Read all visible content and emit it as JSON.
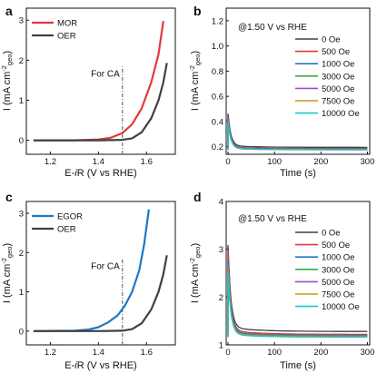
{
  "chart_data": [
    {
      "panel": "a",
      "type": "line",
      "xlabel": "E-iR (V vs RHE)",
      "ylabel": "I (mA cm⁻²geo)",
      "xlim": [
        1.1,
        1.72
      ],
      "ylim": [
        -0.35,
        3.3
      ],
      "xticks": [
        "1.2",
        "1.4",
        "1.6"
      ],
      "yticks": [
        "0",
        "1",
        "2",
        "3"
      ],
      "legend": "top-left",
      "annotation": "For CA",
      "marker_x": 1.5,
      "series": [
        {
          "name": "MOR",
          "color": "#e03a3e",
          "points": [
            [
              1.13,
              0.0
            ],
            [
              1.3,
              0.0
            ],
            [
              1.4,
              0.02
            ],
            [
              1.45,
              0.06
            ],
            [
              1.5,
              0.18
            ],
            [
              1.54,
              0.4
            ],
            [
              1.58,
              0.8
            ],
            [
              1.62,
              1.45
            ],
            [
              1.65,
              2.15
            ],
            [
              1.67,
              2.98
            ]
          ]
        },
        {
          "name": "OER",
          "color": "#404040",
          "points": [
            [
              1.13,
              0.0
            ],
            [
              1.4,
              0.0
            ],
            [
              1.5,
              0.01
            ],
            [
              1.54,
              0.05
            ],
            [
              1.58,
              0.2
            ],
            [
              1.62,
              0.55
            ],
            [
              1.65,
              1.0
            ],
            [
              1.67,
              1.45
            ],
            [
              1.685,
              1.93
            ]
          ]
        }
      ]
    },
    {
      "panel": "b",
      "type": "line",
      "xlabel": "Time (s)",
      "ylabel": "I (mA cm⁻²geo)",
      "xlim": [
        -4,
        305
      ],
      "ylim": [
        0.14,
        1.3
      ],
      "xticks": [
        "0",
        "100",
        "200",
        "300"
      ],
      "yticks": [
        "0.2",
        "0.4",
        "0.6",
        "0.8",
        "1.0",
        "1.2"
      ],
      "annotation": "@1.50 V vs RHE",
      "legend": "right",
      "series": [
        {
          "name": "0 Oe",
          "color": "#404040",
          "start": 0.45,
          "end": 0.195
        },
        {
          "name": "500 Oe",
          "color": "#e03a3e",
          "start": 0.42,
          "end": 0.185
        },
        {
          "name": "1000 Oe",
          "color": "#1f77c4",
          "start": 0.41,
          "end": 0.182
        },
        {
          "name": "3000 Oe",
          "color": "#3aa845",
          "start": 0.4,
          "end": 0.18
        },
        {
          "name": "5000 Oe",
          "color": "#9b4fc8",
          "start": 0.4,
          "end": 0.178
        },
        {
          "name": "7500 Oe",
          "color": "#c89a1a",
          "start": 0.39,
          "end": 0.176
        },
        {
          "name": "10000 Oe",
          "color": "#18c6c6",
          "start": 0.39,
          "end": 0.175
        }
      ]
    },
    {
      "panel": "c",
      "type": "line",
      "xlabel": "E-iR (V vs RHE)",
      "ylabel": "I (mA cm⁻²geo)",
      "xlim": [
        1.1,
        1.72
      ],
      "ylim": [
        -0.35,
        3.3
      ],
      "xticks": [
        "1.2",
        "1.4",
        "1.6"
      ],
      "yticks": [
        "0",
        "1",
        "2",
        "3"
      ],
      "legend": "top-left",
      "annotation": "For CA",
      "marker_x": 1.5,
      "series": [
        {
          "name": "EGOR",
          "color": "#1f77c4",
          "points": [
            [
              1.13,
              0.0
            ],
            [
              1.3,
              0.01
            ],
            [
              1.36,
              0.04
            ],
            [
              1.4,
              0.1
            ],
            [
              1.44,
              0.22
            ],
            [
              1.48,
              0.4
            ],
            [
              1.51,
              0.65
            ],
            [
              1.54,
              1.0
            ],
            [
              1.57,
              1.55
            ],
            [
              1.59,
              2.2
            ],
            [
              1.61,
              3.1
            ]
          ]
        },
        {
          "name": "OER",
          "color": "#404040",
          "points": [
            [
              1.13,
              0.0
            ],
            [
              1.4,
              0.0
            ],
            [
              1.5,
              0.01
            ],
            [
              1.54,
              0.05
            ],
            [
              1.58,
              0.2
            ],
            [
              1.62,
              0.55
            ],
            [
              1.65,
              1.0
            ],
            [
              1.67,
              1.45
            ],
            [
              1.685,
              1.93
            ]
          ]
        }
      ]
    },
    {
      "panel": "d",
      "type": "line",
      "xlabel": "Time (s)",
      "ylabel": "I (mA cm⁻²geo)",
      "xlim": [
        -4,
        305
      ],
      "ylim": [
        1.0,
        4.0
      ],
      "xticks": [
        "0",
        "100",
        "200",
        "300"
      ],
      "yticks": [
        "1",
        "2",
        "3",
        "4"
      ],
      "annotation": "@1.50 V vs RHE",
      "legend": "right",
      "series": [
        {
          "name": "0 Oe",
          "color": "#404040",
          "start": 3.0,
          "end": 1.28
        },
        {
          "name": "500 Oe",
          "color": "#e03a3e",
          "start": 2.9,
          "end": 1.22
        },
        {
          "name": "1000 Oe",
          "color": "#1f77c4",
          "start": 2.7,
          "end": 1.2
        },
        {
          "name": "3000 Oe",
          "color": "#3aa845",
          "start": 2.6,
          "end": 1.19
        },
        {
          "name": "5000 Oe",
          "color": "#9b4fc8",
          "start": 2.55,
          "end": 1.18
        },
        {
          "name": "7500 Oe",
          "color": "#c89a1a",
          "start": 2.5,
          "end": 1.17
        },
        {
          "name": "10000 Oe",
          "color": "#18c6c6",
          "start": 2.45,
          "end": 1.16
        }
      ]
    }
  ]
}
